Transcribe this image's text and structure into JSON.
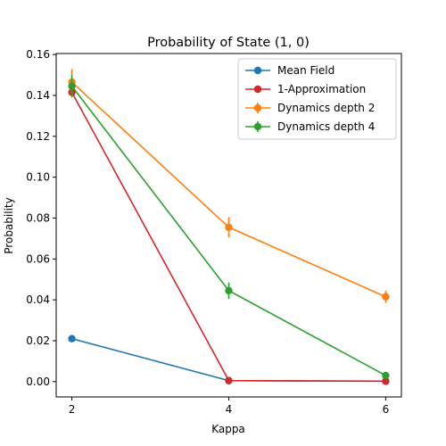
{
  "chart_data": {
    "type": "line",
    "title": "Probability of State (1, 0)",
    "xlabel": "Kappa",
    "ylabel": "Probability",
    "xlim": [
      1.8,
      6.2
    ],
    "ylim": [
      -0.0075,
      0.1605
    ],
    "xticks": [
      2,
      4,
      6
    ],
    "xtick_labels": [
      "2",
      "4",
      "6"
    ],
    "yticks": [
      0.0,
      0.02,
      0.04,
      0.06,
      0.08,
      0.1,
      0.12,
      0.14,
      0.16
    ],
    "ytick_labels": [
      "0.00",
      "0.02",
      "0.04",
      "0.06",
      "0.08",
      "0.10",
      "0.12",
      "0.14",
      "0.16"
    ],
    "legend_position": "top-right",
    "grid": false,
    "x": [
      2,
      4,
      6
    ],
    "series": [
      {
        "name": "Mean Field",
        "color": "#1f77b4",
        "values": [
          0.021,
          0.0005,
          0.0002
        ],
        "errors": null
      },
      {
        "name": "1-Approximation",
        "color": "#d62728",
        "values": [
          0.1415,
          0.0005,
          0.0002
        ],
        "errors": null
      },
      {
        "name": "Dynamics depth 2",
        "color": "#ff7f0e",
        "values": [
          0.1465,
          0.0755,
          0.0415
        ],
        "errors": [
          0.0065,
          0.005,
          0.003
        ]
      },
      {
        "name": "Dynamics depth 4",
        "color": "#2ca02c",
        "values": [
          0.1445,
          0.0445,
          0.003
        ],
        "errors": [
          0.0055,
          0.004,
          0.001
        ]
      }
    ]
  }
}
